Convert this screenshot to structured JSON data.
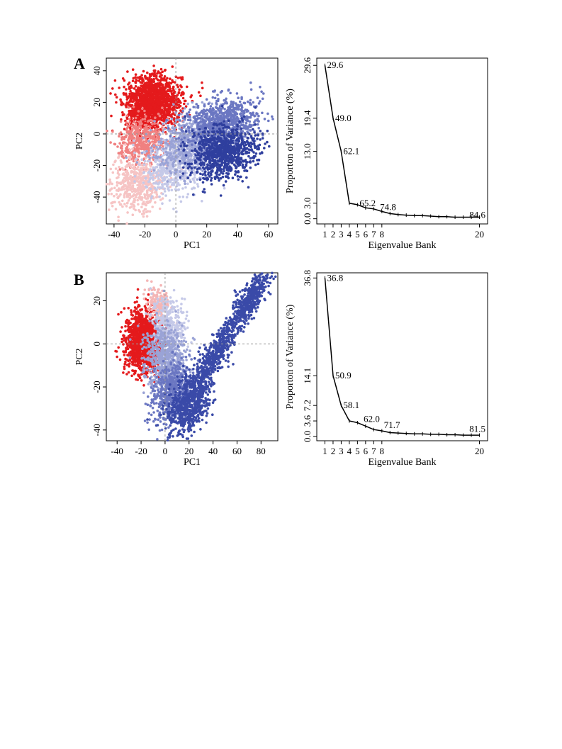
{
  "figure": {
    "panels": [
      {
        "letter": "A"
      },
      {
        "letter": "B"
      }
    ]
  },
  "chart_data": [
    {
      "id": "A-scatter",
      "panel": "A",
      "type": "scatter",
      "xlabel": "PC1",
      "ylabel": "PC2",
      "xlim": [
        -45,
        66
      ],
      "ylim": [
        -57,
        48
      ],
      "xticks": [
        -40,
        -20,
        0,
        20,
        40,
        60
      ],
      "yticks": [
        -40,
        -20,
        0,
        20,
        40
      ],
      "reference_lines": {
        "x": 0,
        "y": 0,
        "style": "dashed gray"
      },
      "clusters": [
        {
          "color": "#e41a1c",
          "center": [
            -15,
            20
          ],
          "spread": [
            9,
            8
          ],
          "angle_deg": 40,
          "count": 1500
        },
        {
          "color": "#f08080",
          "center": [
            -22,
            -5
          ],
          "spread": [
            8,
            8
          ],
          "angle_deg": 20,
          "count": 450
        },
        {
          "color": "#f6c4c4",
          "center": [
            -25,
            -32
          ],
          "spread": [
            9,
            9
          ],
          "angle_deg": 30,
          "count": 500
        },
        {
          "color": "#c5c9e8",
          "center": [
            -2,
            -20
          ],
          "spread": [
            11,
            8
          ],
          "angle_deg": 20,
          "count": 550
        },
        {
          "color": "#9aa3d6",
          "center": [
            12,
            -5
          ],
          "spread": [
            13,
            9
          ],
          "angle_deg": 25,
          "count": 700
        },
        {
          "color": "#6b77c2",
          "center": [
            30,
            8
          ],
          "spread": [
            12,
            7
          ],
          "angle_deg": 15,
          "count": 700
        },
        {
          "color": "#2f3f9e",
          "center": [
            30,
            -12
          ],
          "spread": [
            11,
            8
          ],
          "angle_deg": 25,
          "count": 900
        }
      ]
    },
    {
      "id": "A-scree",
      "panel": "A",
      "type": "line",
      "xlabel": "Eigenvalue Bank",
      "ylabel": "Proporton of Variance (%)",
      "x": [
        1,
        2,
        3,
        4,
        5,
        6,
        7,
        8,
        9,
        10,
        11,
        12,
        13,
        14,
        15,
        16,
        17,
        18,
        19,
        20
      ],
      "y": [
        29.6,
        19.4,
        13.0,
        3.0,
        2.7,
        2.1,
        1.9,
        1.4,
        1.0,
        0.8,
        0.7,
        0.6,
        0.6,
        0.5,
        0.4,
        0.4,
        0.3,
        0.3,
        0.3,
        0.3
      ],
      "xticks": [
        1,
        2,
        3,
        4,
        5,
        6,
        7,
        8,
        20
      ],
      "yticks": [
        0.0,
        3.0,
        13.0,
        19.4,
        29.6
      ],
      "ytick_labels": [
        "0.0",
        "3.0",
        "13.0",
        "19.4",
        "29.6"
      ],
      "xlim": [
        0,
        21
      ],
      "ylim": [
        -1,
        31
      ],
      "annotations": [
        {
          "x": 1,
          "y": 29.6,
          "text": "29.6"
        },
        {
          "x": 2,
          "y": 19.4,
          "text": "49.0"
        },
        {
          "x": 3,
          "y": 13.0,
          "text": "62.1"
        },
        {
          "x": 5,
          "y": 3.0,
          "text": "65.2"
        },
        {
          "x": 7.5,
          "y": 2.2,
          "text": "74.8"
        },
        {
          "x": 18.5,
          "y": 0.7,
          "text": "84.6"
        }
      ]
    },
    {
      "id": "B-scatter",
      "panel": "B",
      "type": "scatter",
      "xlabel": "PC1",
      "ylabel": "PC2",
      "xlim": [
        -49,
        94
      ],
      "ylim": [
        -45,
        33
      ],
      "xticks": [
        -40,
        -20,
        0,
        20,
        40,
        60,
        80
      ],
      "yticks": [
        -40,
        -20,
        0,
        20
      ],
      "reference_lines": {
        "x": 0,
        "y": 0,
        "style": "dashed gray"
      },
      "clusters": [
        {
          "color": "#e41a1c",
          "center": [
            -18,
            1
          ],
          "spread": [
            7,
            7
          ],
          "angle_deg": 50,
          "count": 1400
        },
        {
          "color": "#f4b6b6",
          "center": [
            -5,
            18
          ],
          "spread": [
            4,
            5
          ],
          "angle_deg": 60,
          "count": 180
        },
        {
          "color": "#c5c9e8",
          "center": [
            3,
            8
          ],
          "spread": [
            6,
            7
          ],
          "angle_deg": 60,
          "count": 350
        },
        {
          "color": "#9aa3d6",
          "center": [
            0,
            -8
          ],
          "spread": [
            8,
            9
          ],
          "angle_deg": 60,
          "count": 700
        },
        {
          "color": "#6b77c2",
          "center": [
            5,
            -22
          ],
          "spread": [
            9,
            6
          ],
          "angle_deg": 30,
          "count": 500
        },
        {
          "color": "#3a4aa8",
          "center": [
            20,
            -28
          ],
          "spread": [
            10,
            6
          ],
          "angle_deg": 25,
          "count": 700
        },
        {
          "color": "#3a4aa8",
          "center": [
            42,
            -5
          ],
          "spread": [
            12,
            3.5
          ],
          "angle_deg": 40,
          "count": 500
        },
        {
          "color": "#3a4aa8",
          "center": [
            70,
            20
          ],
          "spread": [
            10,
            3.5
          ],
          "angle_deg": 38,
          "count": 450
        }
      ]
    },
    {
      "id": "B-scree",
      "panel": "B",
      "type": "line",
      "xlabel": "Eigenvalue Bank",
      "ylabel": "Proporton of Variance (%)",
      "x": [
        1,
        2,
        3,
        4,
        5,
        6,
        7,
        8,
        9,
        10,
        11,
        12,
        13,
        14,
        15,
        16,
        17,
        18,
        19,
        20
      ],
      "y": [
        36.8,
        14.1,
        7.2,
        3.6,
        3.2,
        2.4,
        1.6,
        1.3,
        0.9,
        0.8,
        0.7,
        0.6,
        0.6,
        0.5,
        0.5,
        0.4,
        0.4,
        0.3,
        0.3,
        0.3
      ],
      "xticks": [
        1,
        2,
        3,
        4,
        5,
        6,
        7,
        8,
        20
      ],
      "yticks": [
        0.0,
        3.6,
        7.2,
        14.1,
        36.8
      ],
      "ytick_labels": [
        "0.0",
        "3.6",
        "7.2",
        "14.1",
        "36.8"
      ],
      "xlim": [
        0,
        21
      ],
      "ylim": [
        -1,
        38
      ],
      "annotations": [
        {
          "x": 1,
          "y": 36.8,
          "text": "36.8"
        },
        {
          "x": 2,
          "y": 14.1,
          "text": "50.9"
        },
        {
          "x": 3,
          "y": 7.2,
          "text": "58.1"
        },
        {
          "x": 5.5,
          "y": 4.0,
          "text": "62.0"
        },
        {
          "x": 8,
          "y": 2.6,
          "text": "71.7"
        },
        {
          "x": 18.5,
          "y": 1.7,
          "text": "81.5"
        }
      ]
    }
  ]
}
